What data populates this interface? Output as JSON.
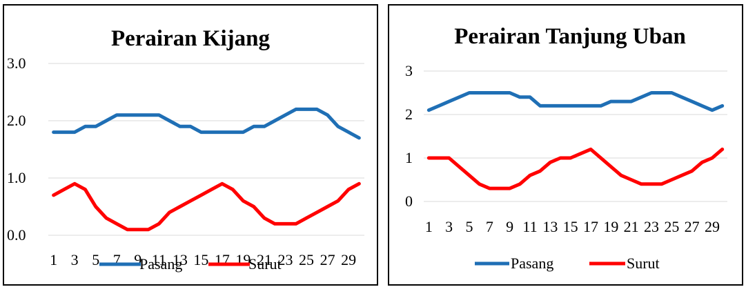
{
  "chart_data": [
    {
      "type": "line",
      "title": "Perairan Kijang",
      "x": [
        1,
        2,
        3,
        4,
        5,
        6,
        7,
        8,
        9,
        10,
        11,
        12,
        13,
        14,
        15,
        16,
        17,
        18,
        19,
        20,
        21,
        22,
        23,
        24,
        25,
        26,
        27,
        28,
        29,
        30
      ],
      "x_tick_labels": [
        "1",
        "3",
        "5",
        "7",
        "9",
        "11",
        "13",
        "15",
        "17",
        "19",
        "21",
        "23",
        "25",
        "27",
        "29"
      ],
      "y_tick_labels": [
        "0.0",
        "1.0",
        "2.0",
        "3.0"
      ],
      "ylim": [
        0,
        3
      ],
      "grid": true,
      "legend_position": "bottom",
      "series": [
        {
          "name": "Pasang",
          "color": "#1f6fb5",
          "values": [
            1.8,
            1.8,
            1.8,
            1.9,
            1.9,
            2.0,
            2.1,
            2.1,
            2.1,
            2.1,
            2.1,
            2.0,
            1.9,
            1.9,
            1.8,
            1.8,
            1.8,
            1.8,
            1.8,
            1.9,
            1.9,
            2.0,
            2.1,
            2.2,
            2.2,
            2.2,
            2.1,
            1.9,
            1.8,
            1.7
          ]
        },
        {
          "name": "Surut",
          "color": "#ff0000",
          "values": [
            0.7,
            0.8,
            0.9,
            0.8,
            0.5,
            0.3,
            0.2,
            0.1,
            0.1,
            0.1,
            0.2,
            0.4,
            0.5,
            0.6,
            0.7,
            0.8,
            0.9,
            0.8,
            0.6,
            0.5,
            0.3,
            0.2,
            0.2,
            0.2,
            0.3,
            0.4,
            0.5,
            0.6,
            0.8,
            0.9
          ]
        }
      ]
    },
    {
      "type": "line",
      "title": "Perairan Tanjung Uban",
      "x": [
        1,
        2,
        3,
        4,
        5,
        6,
        7,
        8,
        9,
        10,
        11,
        12,
        13,
        14,
        15,
        16,
        17,
        18,
        19,
        20,
        21,
        22,
        23,
        24,
        25,
        26,
        27,
        28,
        29,
        30
      ],
      "x_tick_labels": [
        "1",
        "3",
        "5",
        "7",
        "9",
        "11",
        "13",
        "15",
        "17",
        "19",
        "21",
        "23",
        "25",
        "27",
        "29"
      ],
      "y_tick_labels": [
        "0",
        "1",
        "2",
        "3"
      ],
      "ylim": [
        0,
        3
      ],
      "grid": true,
      "legend_position": "bottom",
      "series": [
        {
          "name": "Pasang",
          "color": "#1f6fb5",
          "values": [
            2.1,
            2.2,
            2.3,
            2.4,
            2.5,
            2.5,
            2.5,
            2.5,
            2.5,
            2.4,
            2.4,
            2.2,
            2.2,
            2.2,
            2.2,
            2.2,
            2.2,
            2.2,
            2.3,
            2.3,
            2.3,
            2.4,
            2.5,
            2.5,
            2.5,
            2.4,
            2.3,
            2.2,
            2.1,
            2.2
          ]
        },
        {
          "name": "Surut",
          "color": "#ff0000",
          "values": [
            1.0,
            1.0,
            1.0,
            0.8,
            0.6,
            0.4,
            0.3,
            0.3,
            0.3,
            0.4,
            0.6,
            0.7,
            0.9,
            1.0,
            1.0,
            1.1,
            1.2,
            1.0,
            0.8,
            0.6,
            0.5,
            0.4,
            0.4,
            0.4,
            0.5,
            0.6,
            0.7,
            0.9,
            1.0,
            1.2
          ]
        }
      ]
    }
  ]
}
